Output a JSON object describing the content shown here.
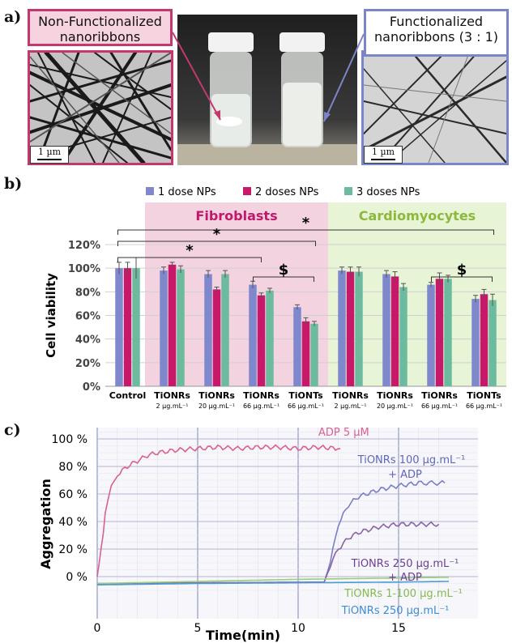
{
  "panel_a": {
    "letter": "a)",
    "left_label": "Non-Functionalized nanoribbons",
    "left_label_line1": "Non-Functionalized",
    "left_label_line2": "nanoribbons",
    "right_label_line1": "Functionalized",
    "right_label_line2": "nanoribbons (3 : 1)",
    "scale_left": "1 µm",
    "scale_right": "1 µm",
    "colors": {
      "left_frame": "#c2386f",
      "right_frame": "#7b86c8"
    }
  },
  "panel_b": {
    "letter": "b)",
    "group_fibroblasts": "Fibroblasts",
    "group_cardiomyocytes": "Cardiomyocytes",
    "ylabel": "Cell viability",
    "sig_star": "*",
    "sig_dollar": "$"
  },
  "panel_c": {
    "letter": "c)",
    "ylabel": "Aggregation",
    "xlabel": "Time(min)",
    "labels": {
      "adp": "ADP 5 µM",
      "onr100_line1": "TiONRs 100 µg.mL⁻¹",
      "onr100_line2": "+ ADP",
      "onr250_line1": "TiONRs 250 µg.mL⁻¹",
      "onr250_line2": "+ ADP",
      "onr1_100": "TiONRs 1-100 µg.mL⁻¹",
      "onr250": "TiONRs 250 µg.mL⁻¹"
    }
  },
  "chart_data": [
    {
      "type": "bar",
      "ylabel": "Cell viability",
      "ylim": [
        0,
        120
      ],
      "y_ticks": [
        "0%",
        "20%",
        "40%",
        "60%",
        "80%",
        "100%",
        "120%"
      ],
      "legend_position": "top",
      "categories": [
        "Control",
        "TiONRs",
        "TiONRs",
        "TiONRs",
        "TiONTs",
        "TiONRs",
        "TiONRs",
        "TiONRs",
        "TiONTs"
      ],
      "category_sublabels": [
        "",
        "2 µg.mL⁻¹",
        "20 µg.mL⁻¹",
        "66 µg.mL⁻¹",
        "66 µg.mL⁻¹",
        "2 µg.mL⁻¹",
        "20 µg.mL⁻¹",
        "66 µg.mL⁻¹",
        "66 µg.mL⁻¹"
      ],
      "series": [
        {
          "name": "1 dose NPs",
          "color": "#7f88cc",
          "values": [
            100,
            98,
            95,
            86,
            67,
            98,
            95,
            86,
            74
          ],
          "errors": [
            5,
            3,
            3,
            3,
            2,
            3,
            3,
            2,
            3
          ]
        },
        {
          "name": "2 doses NPs",
          "color": "#c8186a",
          "values": [
            100,
            103,
            82,
            77,
            55,
            97,
            93,
            91,
            78
          ],
          "errors": [
            5,
            2,
            2,
            2,
            3,
            4,
            4,
            5,
            4
          ]
        },
        {
          "name": "3 doses NPs",
          "color": "#6dbb9e",
          "values": [
            100,
            99,
            95,
            81,
            53,
            97,
            84,
            91,
            73
          ],
          "errors": [
            9,
            3,
            3,
            2,
            2,
            4,
            3,
            3,
            5
          ]
        }
      ]
    },
    {
      "type": "line",
      "xlabel": "Time(min)",
      "ylabel": "Aggregation",
      "xlim": [
        0,
        17.5
      ],
      "ylim": [
        0,
        100
      ],
      "x_ticks": [
        "0",
        "5",
        "10",
        "15"
      ],
      "y_ticks": [
        "0 %",
        "20 %",
        "40 %",
        "60 %",
        "80 %",
        "100 %"
      ],
      "series": [
        {
          "name": "ADP 5 µM",
          "color": "#d9608f",
          "x": [
            0,
            0.2,
            0.4,
            0.7,
            1.0,
            1.5,
            2,
            2.5,
            3,
            4,
            5,
            6,
            7,
            8,
            9,
            10,
            11,
            12.1
          ],
          "y": [
            0,
            20,
            45,
            65,
            74,
            80,
            84,
            88,
            90,
            92,
            93,
            94,
            93,
            94,
            94,
            93,
            94,
            93
          ]
        },
        {
          "name": "TiONRs 100 µg.mL⁻¹ + ADP",
          "color": "#7a7fc4",
          "x": [
            0,
            11.3,
            11.6,
            12,
            12.5,
            13,
            14,
            15,
            16,
            17.3
          ],
          "y": [
            -5,
            -4,
            10,
            38,
            52,
            58,
            63,
            66,
            68,
            68
          ]
        },
        {
          "name": "TiONRs 250 µg.mL⁻¹ + ADP",
          "color": "#8a62a8",
          "x": [
            0,
            11.3,
            11.6,
            12,
            12.5,
            13,
            14,
            15,
            16,
            17
          ],
          "y": [
            -5,
            -4,
            8,
            20,
            28,
            32,
            36,
            38,
            38,
            38
          ]
        },
        {
          "name": "TiONRs 1-100 µg.mL⁻¹",
          "color": "#9ccd78",
          "x": [
            0,
            5,
            10,
            15,
            17.5
          ],
          "y": [
            -5,
            -3.5,
            -2,
            -1,
            -0.5
          ]
        },
        {
          "name": "TiONRs 250 µg.mL⁻¹",
          "color": "#4c9cd6",
          "x": [
            0,
            5,
            10,
            15,
            17.5
          ],
          "y": [
            -6,
            -5,
            -4.5,
            -4,
            -3.5
          ]
        }
      ]
    }
  ]
}
